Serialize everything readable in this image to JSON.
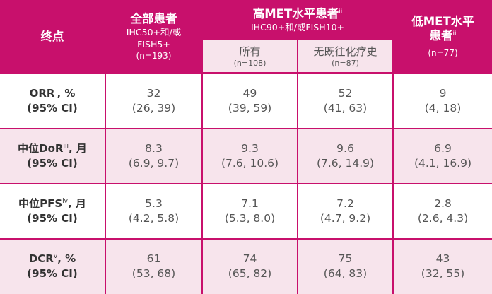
{
  "header": {
    "endpoint": "终点",
    "all": {
      "title": "全部患者",
      "line1": "IHC50+和/或",
      "line2": "FISH5+",
      "n": "(n=193)"
    },
    "high": {
      "title": "高MET水平患者",
      "sup": "ii",
      "sub": "IHC90+和/或FISH10+",
      "all_label": "所有",
      "all_n": "(n=108)",
      "naive_label": "无既往化疗史",
      "naive_n": "(n=87)"
    },
    "low": {
      "title_line1": "低MET水平",
      "title_line2": "患者",
      "sup": "ii",
      "n": "(n=77)"
    }
  },
  "rows": [
    {
      "label_main": "ORR , %",
      "label_sup": "",
      "label_tail": "",
      "label_ci": "(95% CI)",
      "values": [
        {
          "v": "32",
          "ci": "(26, 39)"
        },
        {
          "v": "49",
          "ci": "(39, 59)"
        },
        {
          "v": "52",
          "ci": "(41, 63)"
        },
        {
          "v": "9",
          "ci": "(4, 18)"
        }
      ]
    },
    {
      "label_main": "中位DoR",
      "label_sup": "iii",
      "label_tail": ", 月",
      "label_ci": "(95% CI)",
      "values": [
        {
          "v": "8.3",
          "ci": "(6.9, 9.7)"
        },
        {
          "v": "9.3",
          "ci": "(7.6, 10.6)"
        },
        {
          "v": "9.6",
          "ci": "(7.6, 14.9)"
        },
        {
          "v": "6.9",
          "ci": "(4.1, 16.9)"
        }
      ]
    },
    {
      "label_main": "中位PFS",
      "label_sup": "iv",
      "label_tail": ", 月",
      "label_ci": "(95% CI)",
      "values": [
        {
          "v": "5.3",
          "ci": "(4.2, 5.8)"
        },
        {
          "v": "7.1",
          "ci": "(5.3, 8.0)"
        },
        {
          "v": "7.2",
          "ci": "(4.7, 9.2)"
        },
        {
          "v": "2.8",
          "ci": "(2.6, 4.3)"
        }
      ]
    },
    {
      "label_main": "DCR",
      "label_sup": "v",
      "label_tail": ", %",
      "label_ci": "(95% CI)",
      "values": [
        {
          "v": "61",
          "ci": "(53, 68)"
        },
        {
          "v": "74",
          "ci": "(65, 82)"
        },
        {
          "v": "75",
          "ci": "(64, 83)"
        },
        {
          "v": "43",
          "ci": "(32, 55)"
        }
      ]
    }
  ]
}
